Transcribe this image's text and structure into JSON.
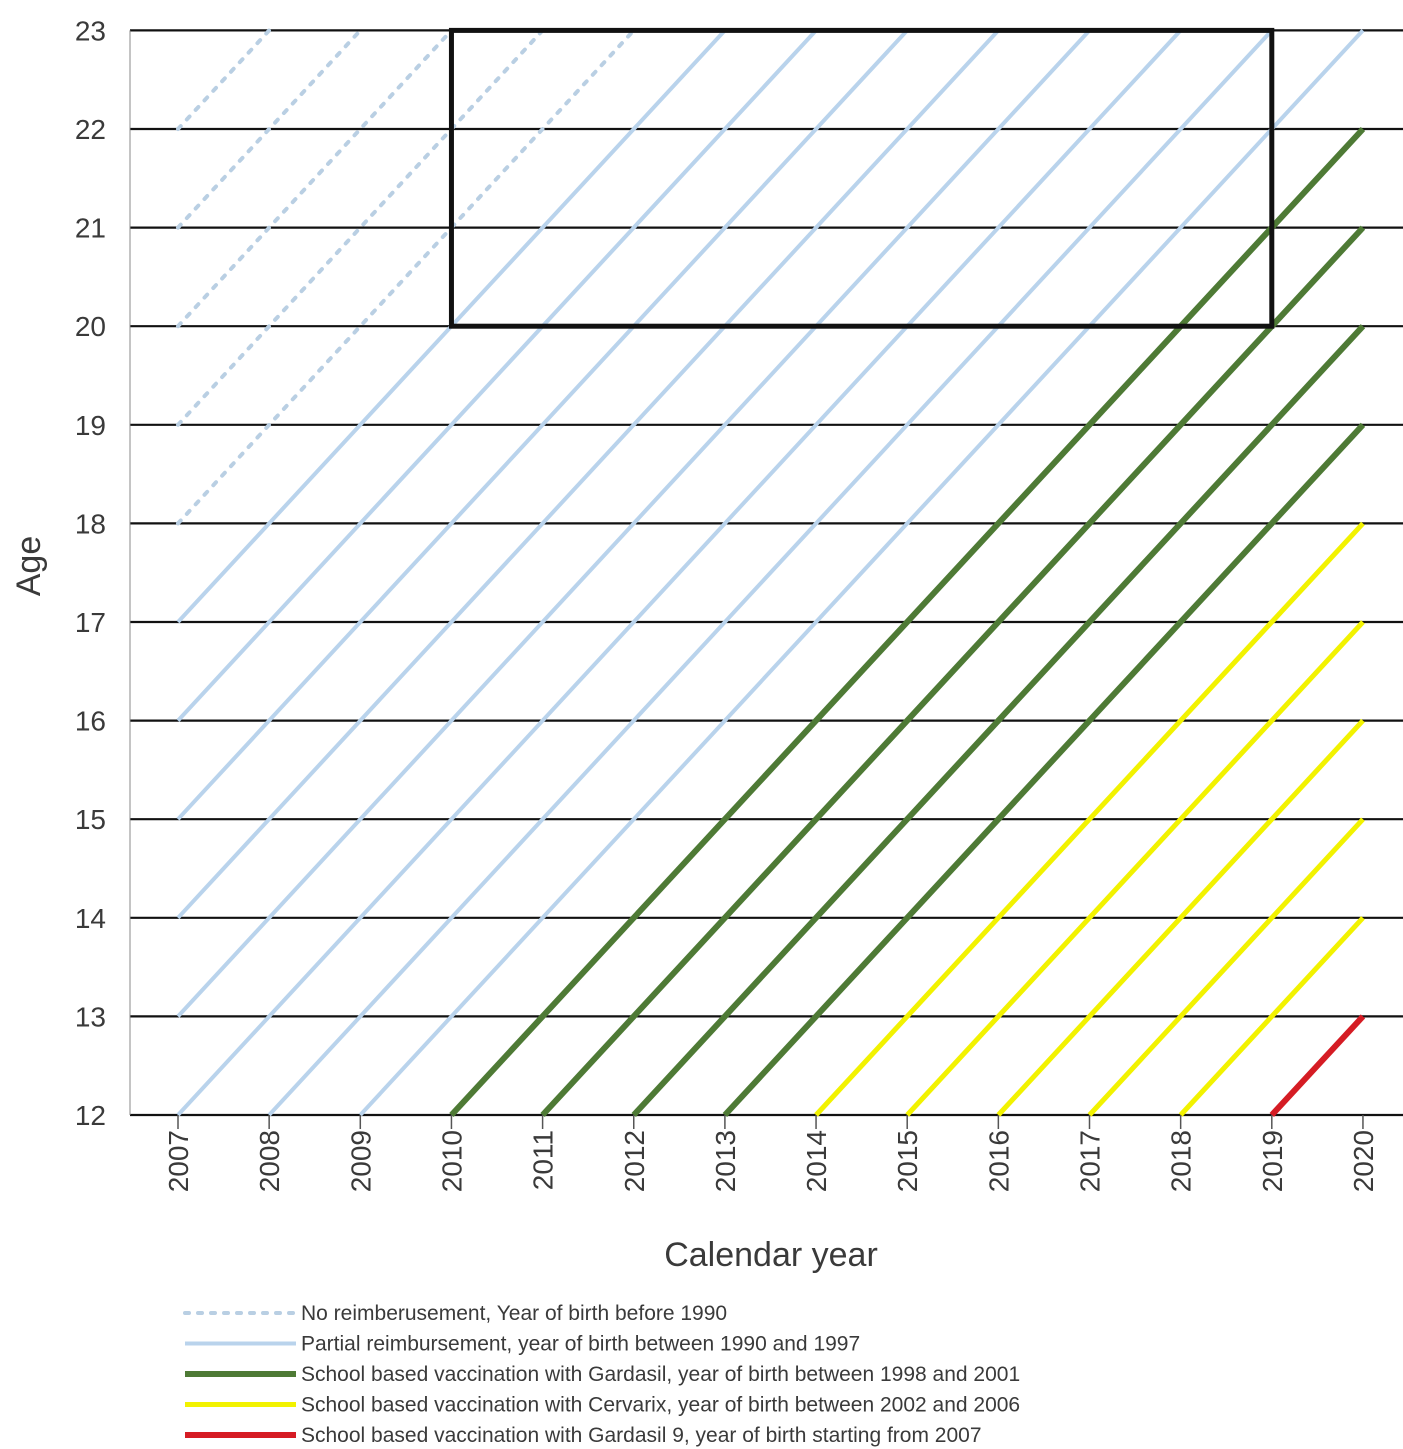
{
  "chart_data": {
    "type": "line",
    "title": "",
    "xlabel": "Calendar year",
    "ylabel": "Age",
    "x_ticks": [
      "2007",
      "2008",
      "2009",
      "2010",
      "2011",
      "2012",
      "2013",
      "2014",
      "2015",
      "2016",
      "2017",
      "2018",
      "2019",
      "2020"
    ],
    "y_ticks": [
      "12",
      "13",
      "14",
      "15",
      "16",
      "17",
      "18",
      "19",
      "20",
      "21",
      "22",
      "23"
    ],
    "xlim": [
      2006.5,
      2020.5
    ],
    "ylim": [
      12,
      23
    ],
    "grid": "horizontal",
    "highlight_box": {
      "x": [
        2010,
        2019
      ],
      "y": [
        20,
        23
      ]
    },
    "colors": {
      "no_reimbursement": "#b9cfe3",
      "partial": "#b9d3ec",
      "gardasil": "#4e7a35",
      "cervarix": "#f2f200",
      "gardasil9": "#d51c24",
      "grid": "#111111",
      "box": "#111111"
    },
    "series": [
      {
        "name": "No reimberusement, Year of birth before 1990",
        "group": "no_reimbursement",
        "birth_years": [
          1984,
          1985,
          1986,
          1987,
          1988,
          1989
        ]
      },
      {
        "name": "Partial reimbursement, year of birth between 1990 and 1997",
        "group": "partial",
        "birth_years": [
          1990,
          1991,
          1992,
          1993,
          1994,
          1995,
          1996,
          1997
        ]
      },
      {
        "name": "School based vaccination with Gardasil, year of birth between 1998 and 2001",
        "group": "gardasil",
        "birth_years": [
          1998,
          1999,
          2000,
          2001
        ]
      },
      {
        "name": "School based vaccination with Cervarix, year of birth between 2002 and 2006",
        "group": "cervarix",
        "birth_years": [
          2002,
          2003,
          2004,
          2005,
          2006
        ]
      },
      {
        "name": "School based vaccination with Gardasil 9, year of birth starting from 2007",
        "group": "gardasil9",
        "birth_years": [
          2007
        ]
      }
    ]
  }
}
